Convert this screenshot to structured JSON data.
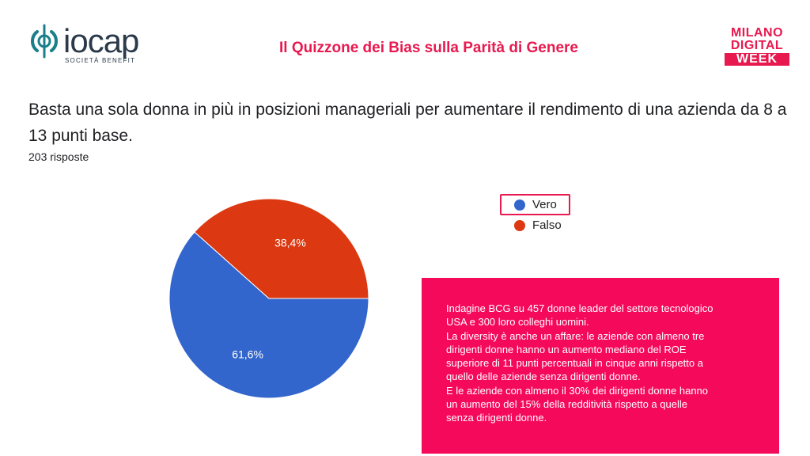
{
  "header": {
    "logo_left": {
      "name": "iocap",
      "subtitle": "SOCIETÀ BENEFIT",
      "icon": "iocap-logo-icon",
      "color": "#2b3a4a"
    },
    "title": "Il Quizzone dei Bias sulla Parità di Genere",
    "logo_right": {
      "line1": "MILANO",
      "line2": "DIGITAL",
      "line3": "WEEK",
      "color": "#e8194f"
    }
  },
  "question": {
    "text": "Basta una sola donna in più in posizioni manageriali per aumentare il rendimento di una azienda da 8 a 13 punti base.",
    "responses": "203 risposte"
  },
  "chart_data": {
    "type": "pie",
    "categories": [
      "Vero",
      "Falso"
    ],
    "values": [
      61.6,
      38.4
    ],
    "labels": [
      "61,6%",
      "38,4%"
    ],
    "colors": [
      "#3366cc",
      "#dc3912"
    ],
    "legend_placement": "top-right",
    "highlighted_legend_item": "Vero"
  },
  "info_box": {
    "background": "#f5095a",
    "lines": [
      "Indagine BCG su 457 donne leader del settore tecnologico",
      "USA e 300 loro colleghi uomini.",
      "La diversity è anche un affare: le aziende con almeno tre",
      "dirigenti donne hanno un aumento mediano del ROE",
      "superiore di 11 punti percentuali in cinque anni rispetto a",
      "quello delle aziende senza dirigenti donne.",
      "E le aziende con almeno il 30% dei dirigenti donne hanno",
      "un aumento del 15% della redditività rispetto a quelle",
      "senza dirigenti donne."
    ]
  },
  "accent_color": "#e8194f"
}
